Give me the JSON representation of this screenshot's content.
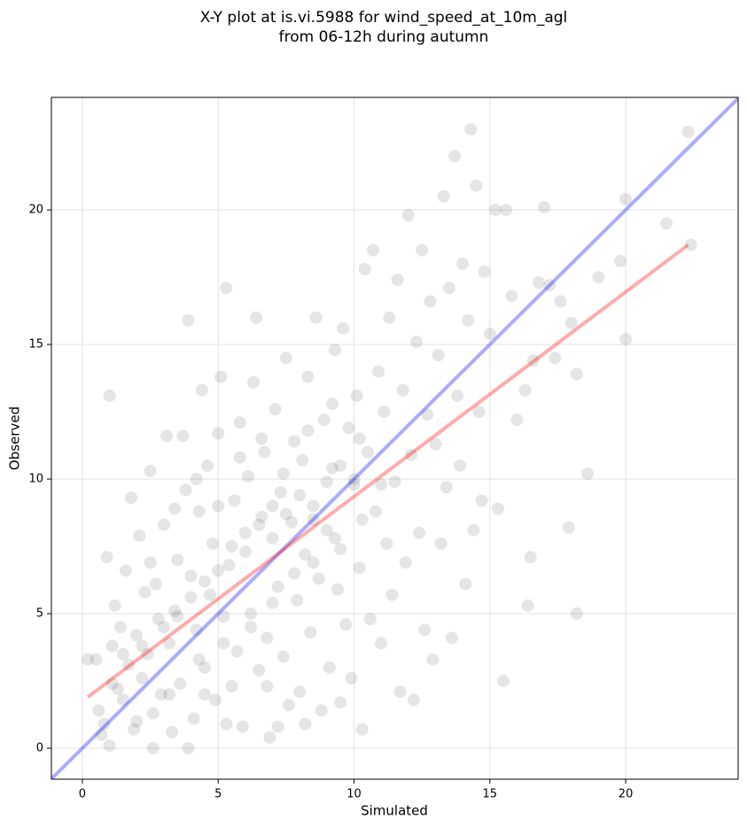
{
  "chart_data": {
    "type": "scatter",
    "title": [
      "X-Y plot at is.vi.5988 for wind_speed_at_10m_agl",
      "from 06-12h during autumn"
    ],
    "xlabel": "Simulated",
    "ylabel": "Observed",
    "xlim": [
      -1.14,
      24.14
    ],
    "ylim": [
      -1.15,
      24.18
    ],
    "xticks": [
      0,
      5,
      10,
      15,
      20
    ],
    "yticks": [
      0,
      5,
      10,
      15,
      20
    ],
    "grid": true,
    "points": {
      "color": "#444444",
      "x": [
        0.2,
        0.5,
        0.6,
        0.8,
        0.9,
        1.0,
        1.0,
        1.1,
        1.2,
        1.3,
        1.4,
        1.5,
        1.6,
        1.7,
        1.8,
        1.9,
        2.0,
        2.1,
        2.2,
        2.3,
        2.4,
        2.5,
        2.6,
        2.7,
        2.8,
        2.9,
        3.0,
        3.1,
        3.2,
        3.3,
        3.4,
        3.5,
        3.6,
        3.7,
        3.8,
        3.9,
        4.0,
        4.1,
        4.2,
        4.3,
        4.4,
        4.5,
        4.6,
        4.7,
        4.8,
        4.9,
        5.0,
        5.1,
        5.2,
        5.3,
        5.4,
        5.5,
        5.6,
        5.7,
        5.8,
        5.9,
        6.0,
        6.1,
        6.2,
        6.3,
        6.4,
        6.5,
        6.6,
        6.7,
        6.8,
        6.9,
        7.0,
        7.1,
        7.2,
        7.3,
        7.4,
        7.5,
        7.6,
        7.7,
        7.8,
        7.9,
        8.0,
        8.1,
        8.2,
        8.3,
        8.4,
        8.5,
        8.6,
        8.7,
        8.8,
        8.9,
        9.0,
        9.1,
        9.2,
        9.3,
        9.4,
        9.5,
        9.6,
        9.7,
        9.8,
        9.9,
        10.0,
        10.1,
        10.2,
        10.3,
        10.4,
        10.5,
        10.6,
        10.7,
        10.8,
        10.9,
        11.0,
        11.1,
        11.2,
        11.3,
        11.4,
        11.5,
        11.6,
        11.7,
        11.8,
        11.9,
        12.0,
        12.1,
        12.2,
        12.3,
        12.4,
        12.5,
        12.6,
        12.7,
        12.8,
        12.9,
        13.0,
        13.1,
        13.2,
        13.3,
        13.4,
        13.5,
        13.6,
        13.7,
        13.8,
        13.9,
        14.0,
        14.1,
        14.2,
        14.3,
        14.4,
        14.5,
        14.6,
        14.7,
        14.8,
        15.0,
        15.2,
        15.3,
        15.5,
        15.6,
        15.8,
        16.0,
        16.3,
        16.4,
        16.5,
        16.6,
        16.8,
        17.0,
        17.2,
        17.4,
        17.6,
        17.9,
        18.0,
        18.2,
        18.2,
        18.6,
        19.0,
        19.8,
        20.0,
        20.0,
        21.5,
        22.3,
        22.4,
        0.7,
        1.1,
        2.0,
        2.6,
        3.9,
        4.5,
        5.3,
        6.8,
        7.2,
        8.2,
        9.5,
        1.5,
        2.2,
        3.0,
        3.5,
        4.0,
        4.5,
        5.0,
        5.5,
        6.0,
        6.5,
        7.0,
        7.5,
        8.0,
        8.5,
        9.0,
        9.5,
        10.0,
        3.2,
        4.3,
        5.2,
        6.2,
        7.0,
        7.8,
        8.5,
        9.3,
        10.3,
        11.0,
        2.5,
        3.4,
        4.2,
        5.0,
        5.8,
        6.6,
        7.4,
        8.3,
        9.2,
        10.2
      ],
      "y": [
        3.3,
        3.3,
        1.4,
        0.9,
        7.1,
        13.1,
        0.1,
        3.8,
        5.3,
        2.2,
        4.5,
        1.8,
        6.6,
        3.1,
        9.3,
        0.7,
        4.2,
        7.9,
        2.6,
        5.8,
        3.5,
        10.3,
        1.3,
        6.1,
        4.8,
        2.0,
        8.3,
        11.6,
        3.9,
        0.6,
        5.1,
        7.0,
        2.4,
        11.6,
        9.6,
        15.9,
        6.4,
        1.1,
        4.4,
        8.8,
        13.3,
        3.0,
        10.5,
        5.7,
        7.6,
        1.8,
        11.7,
        13.8,
        4.9,
        17.1,
        6.8,
        2.3,
        9.2,
        3.6,
        12.1,
        0.8,
        7.3,
        10.1,
        5.0,
        13.6,
        16.0,
        2.9,
        8.6,
        11.0,
        4.1,
        0.4,
        7.8,
        12.6,
        6.0,
        9.5,
        3.4,
        14.5,
        1.6,
        8.4,
        11.4,
        5.5,
        2.1,
        10.7,
        7.2,
        13.8,
        4.3,
        9.0,
        16.0,
        6.3,
        1.4,
        12.2,
        8.1,
        3.0,
        10.4,
        14.8,
        5.9,
        7.4,
        15.6,
        4.6,
        11.9,
        2.6,
        9.8,
        13.1,
        6.7,
        0.7,
        17.8,
        11.0,
        4.8,
        18.5,
        8.8,
        14.0,
        3.9,
        12.5,
        7.6,
        16.0,
        5.7,
        9.9,
        17.4,
        2.1,
        13.3,
        6.9,
        19.8,
        10.9,
        1.8,
        15.1,
        8.0,
        18.5,
        4.4,
        12.4,
        16.6,
        3.3,
        11.3,
        14.6,
        7.6,
        20.5,
        9.7,
        17.1,
        4.1,
        22.0,
        13.1,
        10.5,
        18.0,
        6.1,
        15.9,
        23.0,
        8.1,
        20.9,
        12.5,
        9.2,
        17.7,
        15.4,
        20.0,
        8.9,
        2.5,
        20.0,
        16.8,
        12.2,
        13.3,
        5.3,
        7.1,
        14.4,
        17.3,
        20.1,
        17.2,
        14.5,
        16.6,
        8.2,
        15.8,
        5.0,
        13.9,
        10.2,
        17.5,
        18.1,
        15.2,
        20.4,
        19.5,
        22.9,
        18.7,
        0.5,
        2.4,
        1.0,
        0.0,
        0.0,
        2.0,
        0.9,
        2.3,
        0.8,
        0.9,
        1.7,
        3.5,
        3.8,
        4.5,
        4.9,
        5.6,
        6.2,
        6.6,
        7.5,
        8.0,
        8.3,
        9.0,
        8.7,
        9.4,
        8.5,
        9.9,
        10.5,
        10.0,
        2.0,
        3.3,
        3.9,
        4.5,
        5.4,
        6.5,
        6.9,
        7.8,
        8.5,
        9.8,
        6.9,
        8.9,
        10.0,
        9.0,
        10.8,
        11.5,
        10.2,
        11.8,
        12.8,
        11.5
      ]
    },
    "lines": [
      {
        "color": "#0000ff",
        "x": [
          -1.14,
          24.14
        ],
        "y": [
          -1.14,
          24.14
        ]
      },
      {
        "color": "#ff0000",
        "x": [
          0.2,
          22.3
        ],
        "y": [
          1.9,
          18.7
        ]
      }
    ]
  }
}
